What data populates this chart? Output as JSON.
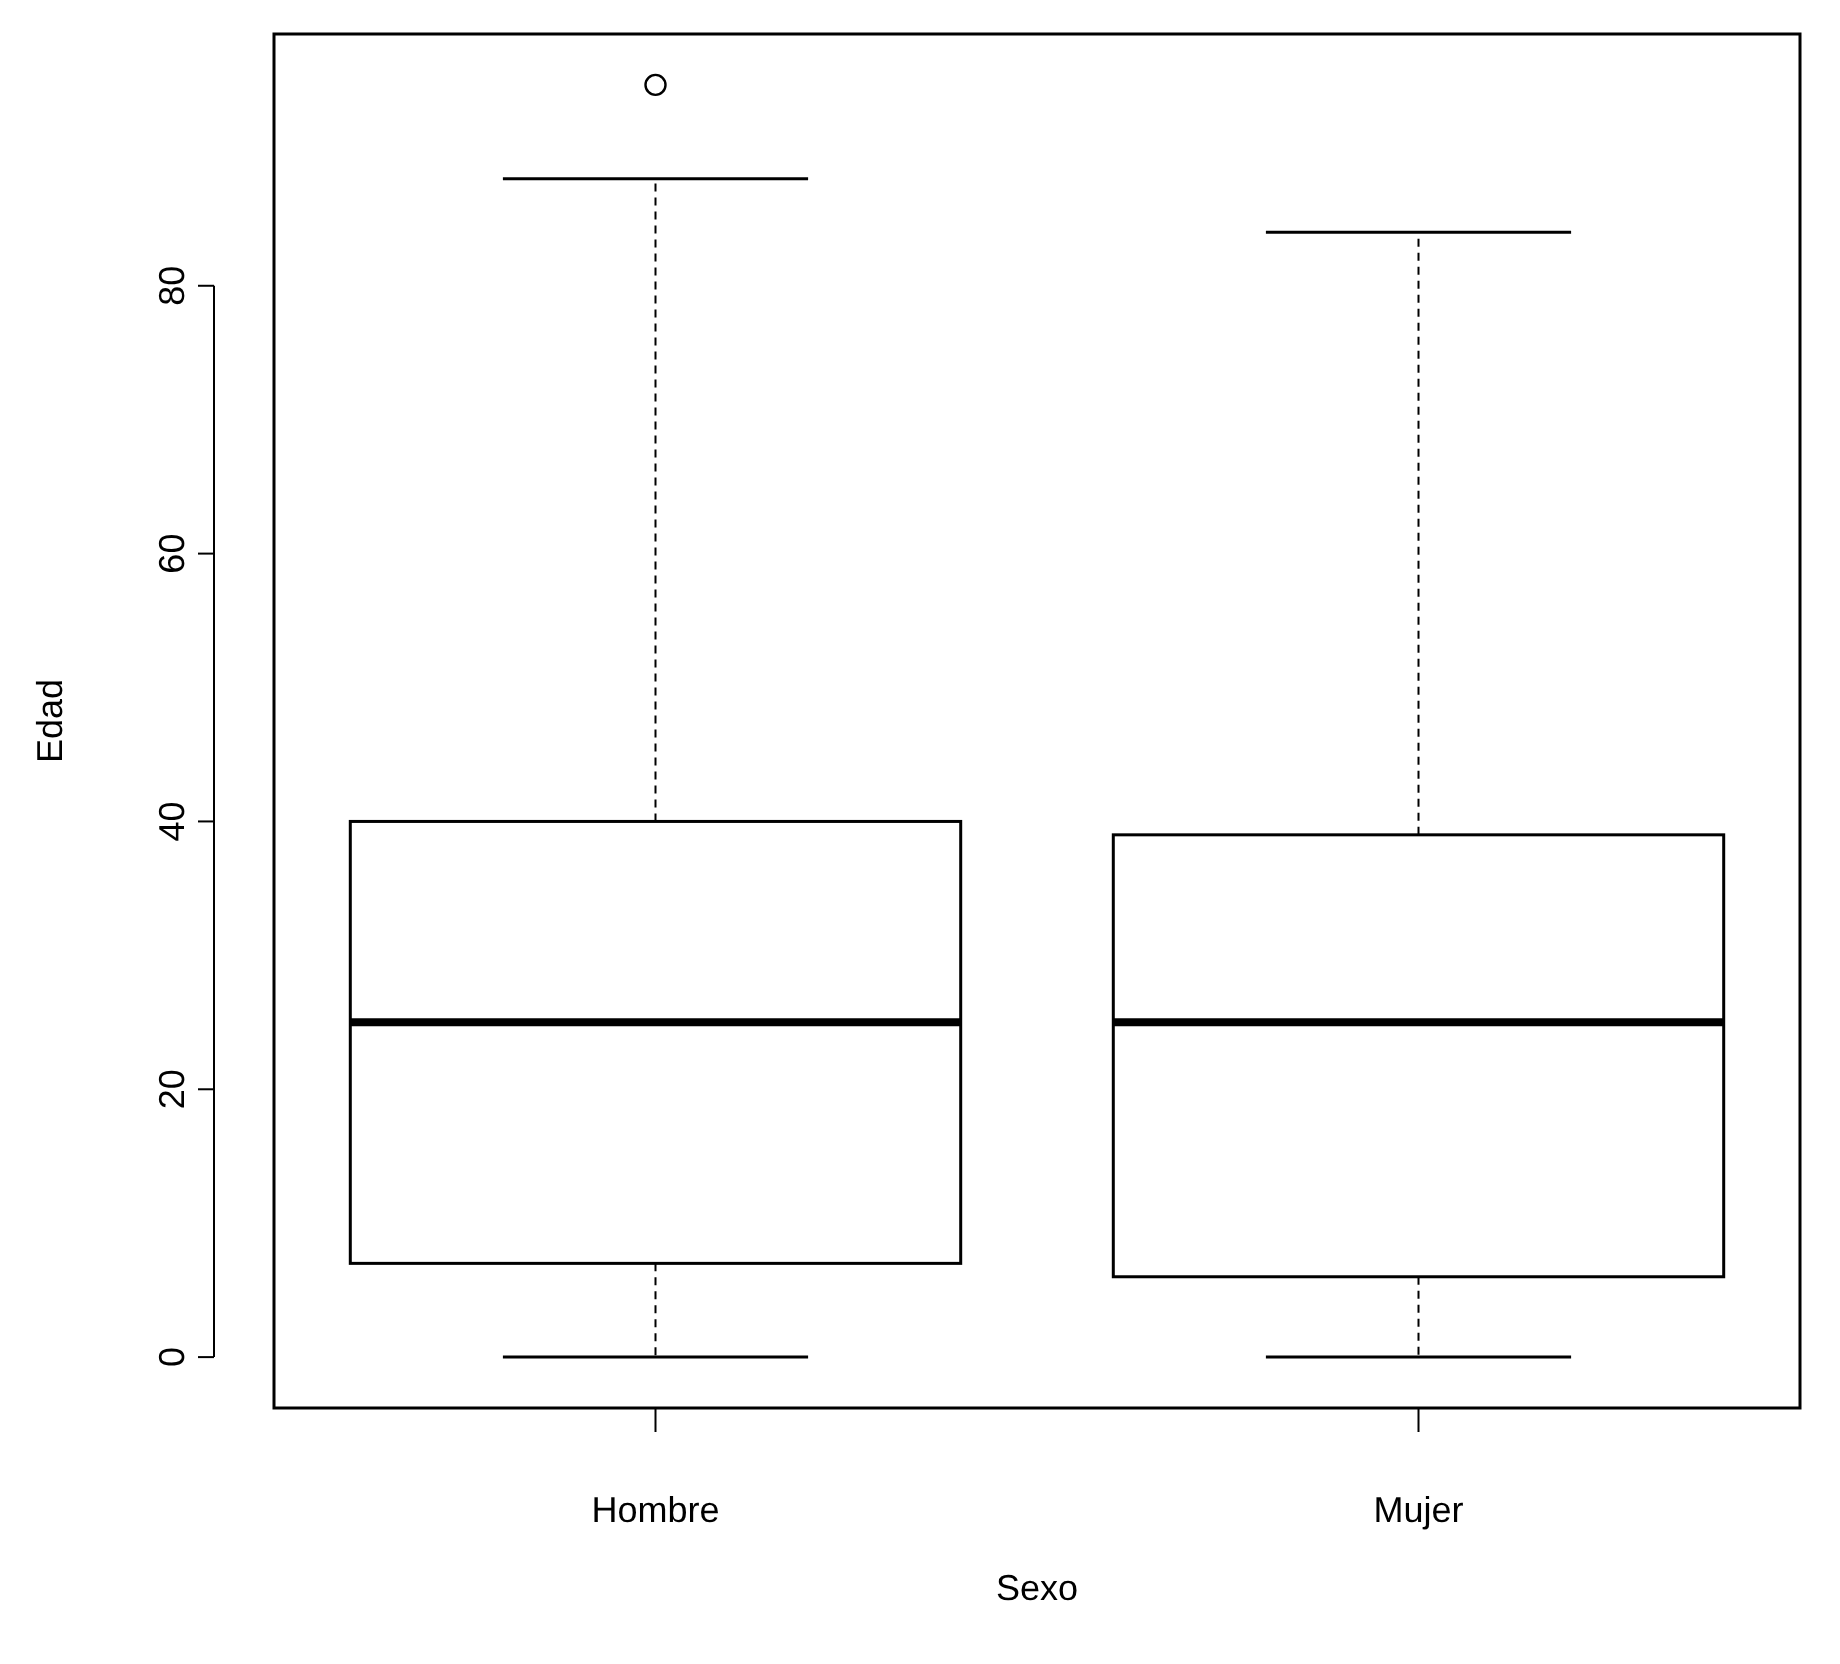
{
  "chart_data": {
    "type": "box",
    "xlabel": "Sexo",
    "ylabel": "Edad",
    "categories": [
      "Hombre",
      "Mujer"
    ],
    "boxes": [
      {
        "low": 0,
        "q1": 7,
        "median": 25,
        "q3": 40,
        "high": 88,
        "outliers": [
          95
        ]
      },
      {
        "low": 0,
        "q1": 6,
        "median": 25,
        "q3": 39,
        "high": 84
      }
    ],
    "ylim": [
      -3.8,
      98.8
    ],
    "yticks": [
      0,
      20,
      40,
      60,
      80
    ]
  }
}
